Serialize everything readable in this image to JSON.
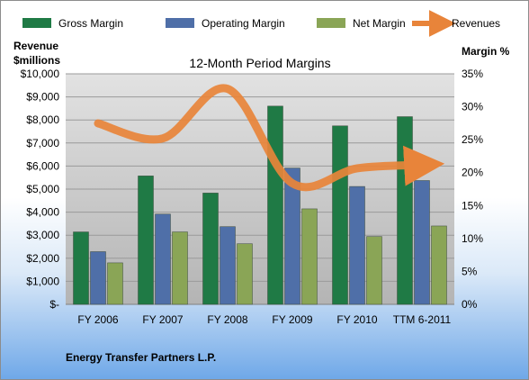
{
  "chart_data": {
    "type": "bar",
    "title": "12-Month Period Margins",
    "company": "Energy Transfer Partners L.P.",
    "left_axis_title_line1": "Revenue",
    "left_axis_title_line2": "$millions",
    "right_axis_title": "Margin %",
    "categories": [
      "FY 2006",
      "FY 2007",
      "FY 2008",
      "FY 2009",
      "FY 2010",
      "TTM 6-2011"
    ],
    "left_ylim": [
      0,
      10000
    ],
    "left_ticks": [
      "$-",
      "$1,000",
      "$2,000",
      "$3,000",
      "$4,000",
      "$5,000",
      "$6,000",
      "$7,000",
      "$8,000",
      "$9,000",
      "$10,000"
    ],
    "right_ylim": [
      0,
      35
    ],
    "right_ticks": [
      "0%",
      "5%",
      "10%",
      "15%",
      "20%",
      "25%",
      "30%",
      "35%"
    ],
    "grid": true,
    "legend_position": "top",
    "series": [
      {
        "name": "Gross Margin",
        "axis": "right",
        "color": "#1f7a45",
        "values": [
          11,
          19.5,
          16.9,
          30.1,
          27.1,
          28.5
        ]
      },
      {
        "name": "Operating Margin",
        "axis": "right",
        "color": "#4f6fa8",
        "values": [
          8,
          13.7,
          11.8,
          20.7,
          17.9,
          18.8
        ]
      },
      {
        "name": "Net Margin",
        "axis": "right",
        "color": "#8aa556",
        "values": [
          6.3,
          11,
          9.2,
          14.5,
          10.3,
          11.9
        ]
      },
      {
        "name": "Revenues",
        "axis": "left",
        "type": "line",
        "color": "#e8843a",
        "values": [
          7850,
          7200,
          9350,
          5250,
          5900,
          6050
        ]
      }
    ]
  }
}
